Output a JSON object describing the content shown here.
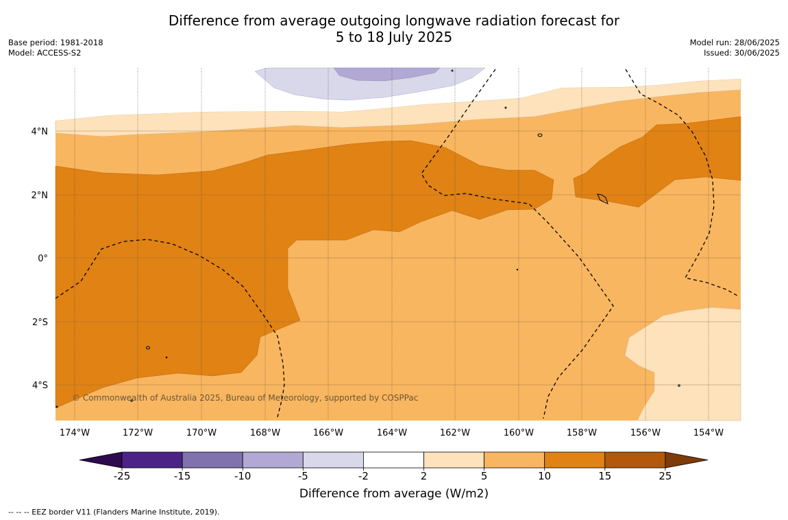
{
  "header": {
    "title_line1": "Difference from average outgoing longwave radiation forecast for",
    "title_line2": "5 to 18 July 2025",
    "base_period": "Base period: 1981-2018",
    "model": "Model: ACCESS-S2",
    "model_run": "Model run: 28/06/2025",
    "issued": "Issued: 30/06/2025"
  },
  "map": {
    "copyright": "© Commonwealth of Australia 2025, Bureau of Meteorology, supported by COSPPac",
    "lat_labels": [
      "4°N",
      "2°N",
      "0°",
      "2°S",
      "4°S"
    ],
    "lon_labels": [
      "174°W",
      "172°W",
      "170°W",
      "168°W",
      "166°W",
      "164°W",
      "162°W",
      "160°W",
      "158°W",
      "156°W",
      "154°W"
    ]
  },
  "colorbar": {
    "title": "Difference from average (W/m2)",
    "ticks": [
      "-25",
      "-15",
      "-10",
      "-5",
      "-2",
      "2",
      "5",
      "10",
      "15",
      "25"
    ],
    "colors": [
      "#4b2386",
      "#7f72ad",
      "#b1a9d3",
      "#d9d8ea",
      "#ffffff",
      "#fde2bb",
      "#f9b660",
      "#e08214",
      "#b3590b"
    ],
    "under_color": "#2d0b4e",
    "over_color": "#7f3b08"
  },
  "footer": {
    "legend_text": "--  --  -- EEZ border V11 (Flanders Marine Institute, 2019)."
  }
}
